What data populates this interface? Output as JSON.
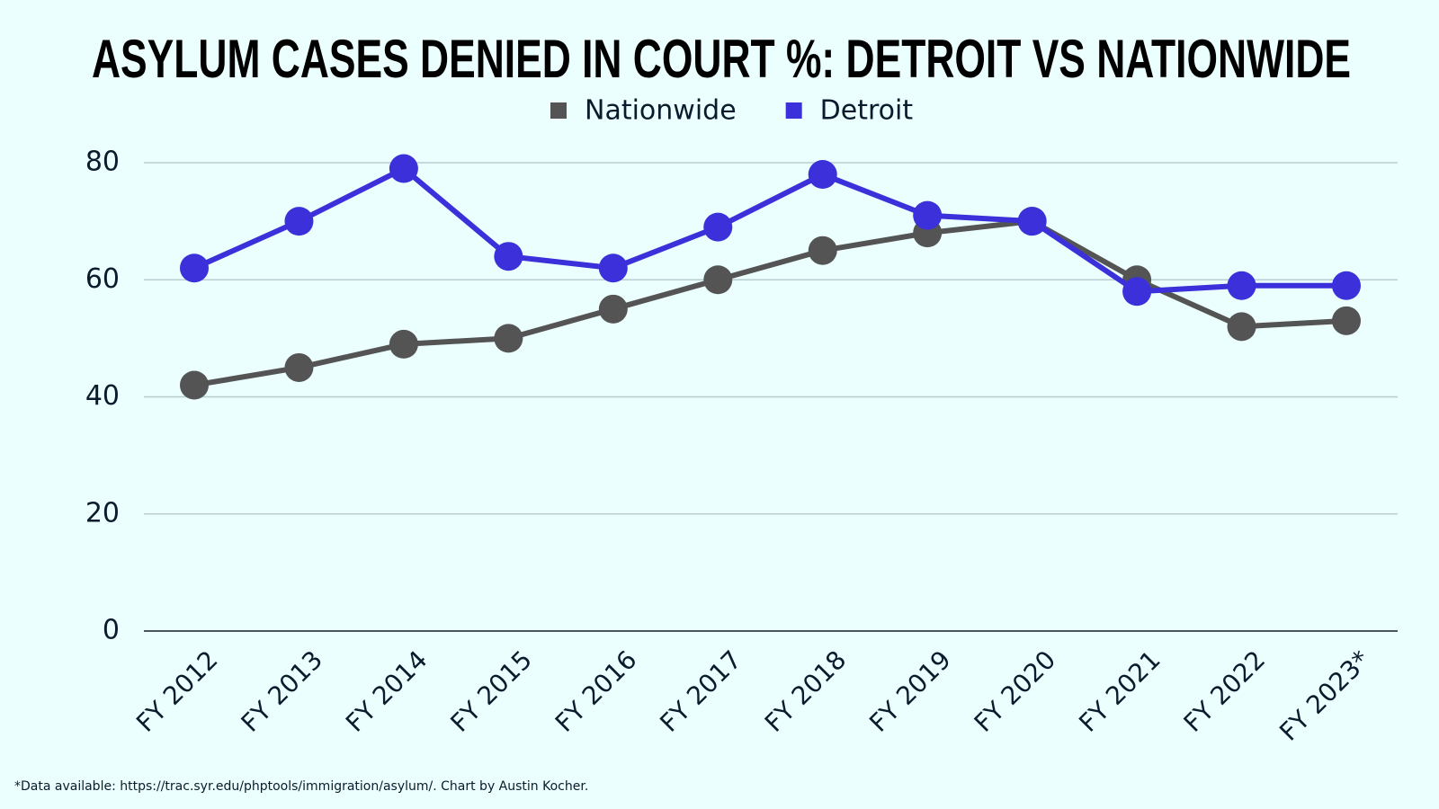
{
  "chart_data": {
    "type": "line",
    "title": "ASYLUM CASES DENIED IN COURT %: DETROIT VS NATIONWIDE",
    "categories": [
      "FY 2012",
      "FY 2013",
      "FY 2014",
      "FY 2015",
      "FY 2016",
      "FY 2017",
      "FY 2018",
      "FY 2019",
      "FY 2020",
      "FY 2021",
      "FY 2022",
      "FY 2023*"
    ],
    "series": [
      {
        "name": "Nationwide",
        "color": "#545454",
        "values": [
          42,
          45,
          49,
          50,
          55,
          60,
          65,
          68,
          70,
          60,
          52,
          53
        ]
      },
      {
        "name": "Detroit",
        "color": "#3b30d9",
        "values": [
          62,
          70,
          79,
          64,
          62,
          69,
          78,
          71,
          70,
          58,
          59,
          59
        ]
      }
    ],
    "ylim": [
      0,
      80
    ],
    "yticks": [
      0,
      20,
      40,
      60,
      80
    ],
    "grid": true,
    "legend": "top",
    "footnote": "*Data available: https://trac.syr.edu/phptools/immigration/asylum/. Chart by Austin Kocher."
  }
}
